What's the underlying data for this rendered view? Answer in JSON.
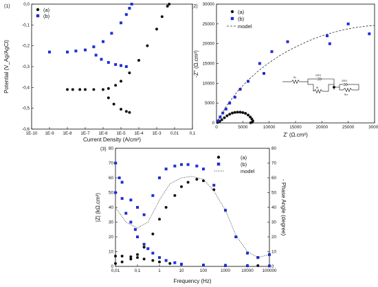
{
  "colors": {
    "a": "#111111",
    "b": "#1f2fd6",
    "model": "#333333"
  },
  "chart_data": [
    {
      "panel": "(1)",
      "type": "scatter",
      "xlabel": "Current Density (A/cm²)",
      "ylabel": "Potential (V_Ag/AgCl)",
      "x_scale": "log",
      "x_ticks": [
        "1E-10",
        "1E-9",
        "1E-8",
        "1E-7",
        "1E-6",
        "1E-5",
        "1E-4",
        "1E-3",
        "0,01",
        "0,1"
      ],
      "y_ticks": [
        "0,0",
        "-0,1",
        "-0,2",
        "-0,3",
        "-0,4",
        "-0,5",
        "-0,6"
      ],
      "xlim": [
        "1E-10",
        "0,1"
      ],
      "ylim": [
        -0.6,
        0.0
      ],
      "legend": {
        "position": "top-left",
        "entries": [
          "(a)",
          "(b)"
        ]
      },
      "series": [
        {
          "name": "(a)",
          "marker": "circle",
          "x": [
            1e-08,
            2e-08,
            5e-08,
            1e-07,
            3e-07,
            1e-06,
            2e-06,
            5e-06,
            1e-05,
            3e-05,
            0.0001,
            0.0003,
            0.001,
            0.002,
            0.004,
            0.005,
            2e-06,
            4e-06,
            1e-05,
            2e-05,
            3e-05
          ],
          "y": [
            -0.41,
            -0.41,
            -0.41,
            -0.41,
            -0.41,
            -0.41,
            -0.405,
            -0.39,
            -0.37,
            -0.33,
            -0.27,
            -0.2,
            -0.12,
            -0.06,
            -0.01,
            0.0,
            -0.45,
            -0.48,
            -0.505,
            -0.515,
            -0.52
          ]
        },
        {
          "name": "(b)",
          "marker": "square",
          "x": [
            1e-09,
            1e-08,
            3e-08,
            1e-07,
            3e-07,
            1e-06,
            3e-06,
            1e-05,
            2e-05,
            3e-05,
            4e-05,
            4e-07,
            8e-07,
            2e-06,
            5e-06,
            1e-05,
            2e-05
          ],
          "y": [
            -0.23,
            -0.23,
            -0.225,
            -0.22,
            -0.205,
            -0.18,
            -0.14,
            -0.09,
            -0.05,
            -0.02,
            0.0,
            -0.245,
            -0.265,
            -0.28,
            -0.29,
            -0.295,
            -0.3
          ]
        }
      ]
    },
    {
      "panel": "(2)",
      "type": "scatter",
      "xlabel": "Z' (Ω.cm²)",
      "ylabel": "-Z'' (Ω.cm²)",
      "x_ticks": [
        "0",
        "5000",
        "10000",
        "15000",
        "20000",
        "25000",
        "30000"
      ],
      "y_ticks": [
        "0",
        "5000",
        "10000",
        "15000",
        "20000",
        "25000",
        "30000"
      ],
      "xlim": [
        0,
        30000
      ],
      "ylim": [
        0,
        30000
      ],
      "legend": {
        "position": "top-left",
        "entries": [
          "(a)",
          "(b)",
          "model"
        ]
      },
      "circuit_labels": [
        "Rs",
        "CPE1",
        "Rf",
        "CPE2",
        "Rct"
      ],
      "series": [
        {
          "name": "(a)",
          "marker": "circle",
          "x": [
            200,
            600,
            1000,
            1500,
            2000,
            2500,
            3000,
            3500,
            4000,
            4500,
            5000,
            5500,
            6000,
            6400,
            6700,
            6900,
            6800,
            6500
          ],
          "y": [
            100,
            400,
            800,
            1300,
            1800,
            2200,
            2500,
            2650,
            2700,
            2700,
            2600,
            2400,
            2000,
            1500,
            1000,
            500,
            200,
            50
          ]
        },
        {
          "name": "(b)",
          "marker": "square",
          "x": [
            300,
            700,
            1200,
            1800,
            2500,
            3500,
            4500,
            6000,
            8200,
            9000,
            10500,
            13500,
            21000,
            21500,
            25000,
            29000
          ],
          "y": [
            500,
            1500,
            2500,
            3500,
            5000,
            6500,
            8500,
            10500,
            15000,
            12500,
            18000,
            20500,
            22000,
            20000,
            25000,
            22500
          ]
        },
        {
          "name": "model",
          "line": "dashed",
          "x": [
            0,
            2000,
            4000,
            6000,
            8000,
            10000,
            12000,
            14000,
            16000,
            18000,
            20000,
            22000,
            24000,
            26000,
            28000,
            30000
          ],
          "y": [
            0,
            4500,
            8000,
            10800,
            13200,
            15200,
            17000,
            18500,
            19800,
            21000,
            22000,
            22800,
            23500,
            24000,
            24400,
            24600
          ]
        }
      ]
    },
    {
      "panel": "(3)",
      "type": "scatter",
      "xlabel": "Frequency (Hz)",
      "ylabel": "|Z| (kΩ.cm²)",
      "ylabel_right": "- Phase Angle (degree)",
      "x_scale": "log",
      "x_ticks": [
        "0,01",
        "0,1",
        "1",
        "10",
        "100",
        "1000",
        "10000",
        "100000"
      ],
      "y_ticks": [
        "0",
        "10",
        "20",
        "30",
        "40",
        "50",
        "60",
        "70",
        "80"
      ],
      "y_ticks_right": [
        "0",
        "10",
        "20",
        "30",
        "40",
        "50",
        "60",
        "70",
        "80"
      ],
      "xlim": [
        0.01,
        100000
      ],
      "ylim": [
        0,
        80
      ],
      "legend": {
        "position": "top-right",
        "entries": [
          "(a)",
          "(b)",
          "model"
        ]
      },
      "series": [
        {
          "name": "(a) |Z|",
          "marker": "circle",
          "axis": "left",
          "x": [
            0.01,
            0.02,
            0.05,
            0.1,
            0.2,
            0.5,
            1,
            3,
            10,
            100,
            1000,
            10000,
            30000,
            100000
          ],
          "y": [
            7,
            7,
            6.5,
            6,
            5,
            4,
            3,
            2,
            1.5,
            1,
            0.8,
            0.6,
            0.5,
            0.4
          ]
        },
        {
          "name": "(a) phase",
          "marker": "circle",
          "axis": "right",
          "x": [
            0.01,
            0.02,
            0.05,
            0.1,
            0.2,
            0.5,
            1,
            2,
            5,
            10,
            20,
            50,
            100,
            300,
            1000,
            3000,
            10000,
            30000,
            100000
          ],
          "y": [
            2,
            3,
            5,
            8,
            13,
            22,
            32,
            40,
            48,
            54,
            57,
            59,
            58,
            52,
            38,
            20,
            9,
            6,
            8
          ]
        },
        {
          "name": "(b) |Z|",
          "marker": "square",
          "axis": "left",
          "x": [
            0.01,
            0.015,
            0.02,
            0.03,
            0.05,
            0.08,
            0.1,
            0.2,
            0.3,
            0.5,
            1,
            2,
            5,
            10,
            100,
            1000,
            10000,
            100000
          ],
          "y": [
            70,
            60,
            46,
            36,
            30,
            25,
            20,
            15,
            12,
            9,
            6,
            4,
            2.5,
            1.5,
            0.8,
            0.5,
            0.4,
            0.3
          ]
        },
        {
          "name": "(b) phase",
          "marker": "square",
          "axis": "right",
          "x": [
            0.01,
            0.02,
            0.05,
            0.1,
            0.2,
            0.5,
            1,
            2,
            5,
            10,
            20,
            50,
            100,
            300,
            1000,
            3000,
            10000,
            30000,
            100000
          ],
          "y": [
            50,
            57,
            45,
            40,
            35,
            48,
            60,
            66,
            68,
            69,
            69,
            68,
            66,
            55,
            38,
            20,
            9,
            6,
            8
          ]
        },
        {
          "name": "model",
          "line": "dotted",
          "axis": "right",
          "x": [
            0.01,
            0.03,
            0.1,
            0.3,
            1,
            3,
            10,
            30,
            100,
            300,
            1000,
            3000,
            10000,
            30000,
            100000
          ],
          "y": [
            40,
            30,
            26,
            30,
            45,
            56,
            60,
            61,
            59,
            51,
            38,
            21,
            10,
            6,
            8
          ]
        }
      ]
    }
  ]
}
